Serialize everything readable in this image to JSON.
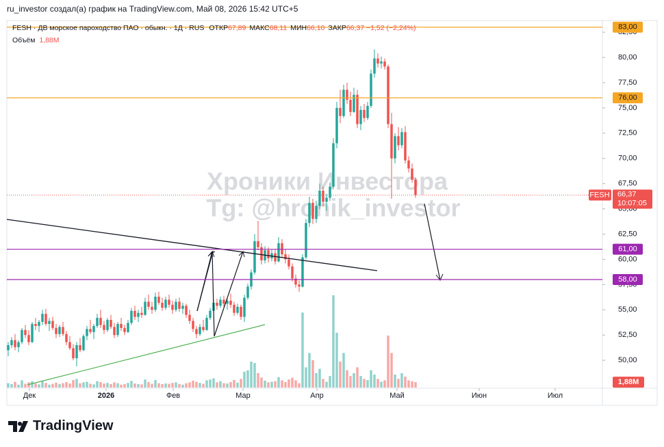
{
  "header": "ru_investor создал(а) график на TradingView.com, Май 08, 2026 15:42 UTC+5",
  "footer": "TradingView",
  "chart_data": {
    "type": "candlestick",
    "legend": {
      "symbol": "FESH · ДВ морское пароходство ПАО · обыкн. · 1Д · RUS",
      "items": [
        {
          "name": "ОТКР",
          "value": 67.89,
          "label": "67,89"
        },
        {
          "name": "МАКС",
          "value": 68.11,
          "label": "68,11"
        },
        {
          "name": "МИН",
          "value": 66.1,
          "label": "66,10"
        },
        {
          "name": "ЗАКР",
          "value": 66.37,
          "label": "66,37"
        }
      ],
      "change": {
        "value": -1.52,
        "label": "−1,52"
      },
      "change_pct": {
        "value": -2.24,
        "label": "(−2,24%)"
      }
    },
    "volume_legend": {
      "name": "Объём",
      "value": 1.88,
      "label": "1,88M"
    },
    "watermark": [
      "Хроники Инвестора",
      "Tg: @hronik_investor"
    ],
    "up_color": "#26a69a",
    "down_color": "#ef5350",
    "xlim": [
      -0.4,
      173.6
    ],
    "xticks": [
      {
        "value": 6.2,
        "label": "Дек"
      },
      {
        "value": 28.6,
        "label": "2026"
      },
      {
        "value": 48.2,
        "label": "Фев"
      },
      {
        "value": 68.6,
        "label": "Мар"
      },
      {
        "value": 90.2,
        "label": "Апр"
      },
      {
        "value": 113.6,
        "label": "Май"
      },
      {
        "value": 137.6,
        "label": "Июн"
      },
      {
        "value": 159.8,
        "label": "Июл"
      }
    ],
    "ylim": [
      47.3,
      83.66
    ],
    "yticks": [
      {
        "value": 50,
        "label": "50,00"
      },
      {
        "value": 52.5,
        "label": "52,50"
      },
      {
        "value": 55,
        "label": "55,00"
      },
      {
        "value": 57.5,
        "label": "57,50"
      },
      {
        "value": 60,
        "label": "60,00"
      },
      {
        "value": 62.5,
        "label": "62,50"
      },
      {
        "value": 65,
        "label": "65,00"
      },
      {
        "value": 67.5,
        "label": "67,50"
      },
      {
        "value": 70,
        "label": "70,00"
      },
      {
        "value": 72.5,
        "label": "72,50"
      },
      {
        "value": 75,
        "label": "75,00"
      },
      {
        "value": 77.5,
        "label": "77,50"
      },
      {
        "value": 80,
        "label": "80,00"
      },
      {
        "value": 82.5,
        "label": "82,50"
      }
    ],
    "levels": [
      {
        "value": 83,
        "label": "83,00",
        "color": "#f5a623"
      },
      {
        "value": 76,
        "label": "76,00",
        "color": "#f5a623"
      },
      {
        "value": 61,
        "label": "61,00",
        "color": "#9c27b0"
      },
      {
        "value": 58,
        "label": "58,00",
        "color": "#9c27b0"
      }
    ],
    "price_tag": {
      "symbol": "FESH",
      "value": 66.37,
      "label": "66,37",
      "countdown": "10:07:05"
    },
    "open": [
      51.0,
      51.5,
      52.0,
      51.3,
      51.8,
      53.0,
      52.5,
      51.8,
      53.6,
      53.4,
      53.8,
      54.6,
      53.6,
      53.9,
      53.2,
      52.6,
      53.3,
      52.6,
      51.8,
      51.2,
      50.2,
      51.5,
      51.0,
      52.4,
      53.1,
      52.8,
      53.4,
      54.2,
      53.5,
      53.0,
      54.0,
      53.3,
      52.5,
      53.6,
      53.2,
      52.8,
      53.7,
      54.9,
      54.3,
      54.7,
      54.5,
      55.8,
      55.3,
      55.0,
      56.3,
      55.7,
      55.2,
      56.0,
      55.5,
      55.0,
      55.8,
      55.1,
      55.4,
      54.5,
      53.9,
      53.1,
      52.6,
      53.3,
      53.0,
      54.2,
      54.9,
      55.7,
      55.4,
      56.0,
      55.6,
      55.9,
      55.5,
      54.7,
      55.3,
      54.3,
      56.2,
      57.3,
      58.7,
      61.8,
      61.2,
      59.9,
      60.9,
      60.1,
      60.6,
      59.8,
      61.6,
      60.5,
      60.0,
      59.3,
      58.1,
      57.5,
      57.3,
      60.2,
      63.6,
      65.6,
      64.0,
      65.3,
      66.8,
      65.7,
      66.1,
      67.2,
      71.5,
      75.0,
      74.2,
      76.8,
      75.8,
      74.6,
      76.3,
      73.4,
      74.8,
      74.0,
      75.2,
      78.4,
      79.9,
      79.4,
      79.6,
      79.1,
      73.4,
      70.0,
      72.2,
      71.3,
      72.6,
      69.8,
      69.0,
      67.89
    ],
    "high": [
      51.8,
      52.3,
      52.6,
      52.0,
      53.2,
      53.5,
      53.0,
      53.8,
      54.2,
      54.0,
      55.0,
      55.1,
      54.2,
      54.3,
      53.6,
      53.5,
      53.8,
      52.9,
      52.4,
      51.6,
      51.8,
      52.2,
      52.6,
      53.4,
      54.0,
      53.6,
      54.6,
      55.0,
      53.9,
      54.2,
      54.5,
      53.7,
      53.8,
      54.2,
      53.5,
      54.0,
      55.2,
      55.4,
      55.0,
      55.3,
      56.2,
      56.5,
      55.8,
      56.7,
      56.8,
      56.2,
      56.3,
      56.5,
      55.9,
      56.1,
      56.2,
      55.7,
      55.6,
      55.0,
      54.2,
      53.4,
      53.6,
      54.0,
      54.5,
      55.2,
      56.0,
      56.1,
      56.3,
      56.4,
      56.2,
      56.6,
      55.8,
      55.6,
      55.5,
      56.5,
      57.6,
      59.0,
      62.5,
      63.8,
      61.6,
      61.3,
      61.2,
      61.0,
      61.0,
      62.2,
      62.0,
      61.0,
      60.5,
      59.6,
      58.5,
      57.9,
      60.5,
      64.0,
      66.2,
      66.0,
      65.8,
      67.5,
      67.2,
      66.5,
      67.6,
      72.0,
      75.6,
      76.8,
      77.3,
      77.5,
      76.6,
      77.0,
      76.8,
      75.2,
      75.4,
      75.6,
      78.8,
      80.8,
      80.4,
      80.1,
      79.9,
      79.3,
      74.5,
      72.5,
      73.1,
      73.0,
      73.2,
      70.2,
      69.5,
      68.11
    ],
    "low": [
      50.4,
      51.2,
      51.0,
      50.8,
      51.6,
      52.2,
      51.5,
      51.7,
      53.0,
      52.8,
      53.5,
      53.4,
      52.9,
      53.0,
      52.2,
      52.3,
      52.4,
      51.5,
      51.0,
      50.0,
      49.4,
      50.8,
      50.9,
      52.0,
      52.6,
      52.1,
      53.2,
      53.2,
      52.6,
      52.8,
      53.1,
      52.2,
      52.3,
      52.9,
      52.5,
      52.7,
      53.5,
      54.0,
      53.8,
      54.2,
      54.4,
      55.0,
      54.6,
      54.8,
      55.5,
      54.9,
      55.0,
      55.2,
      54.6,
      54.8,
      54.8,
      54.6,
      54.2,
      53.6,
      52.8,
      52.2,
      52.4,
      52.8,
      52.9,
      54.0,
      54.6,
      55.0,
      55.2,
      55.3,
      55.0,
      55.2,
      54.4,
      54.5,
      54.0,
      53.8,
      56.0,
      57.0,
      58.5,
      60.9,
      59.5,
      59.6,
      59.7,
      59.8,
      59.5,
      59.7,
      60.2,
      59.6,
      59.0,
      57.8,
      57.2,
      56.8,
      57.2,
      60.0,
      63.2,
      63.5,
      63.6,
      65.0,
      65.2,
      64.8,
      65.8,
      67.0,
      71.0,
      73.5,
      74.0,
      75.4,
      74.2,
      74.5,
      73.0,
      72.8,
      73.6,
      73.8,
      75.0,
      78.0,
      79.0,
      78.9,
      78.8,
      73.0,
      66.0,
      69.5,
      70.8,
      71.0,
      69.5,
      68.6,
      67.6,
      66.1
    ],
    "close": [
      51.5,
      52.0,
      51.3,
      51.8,
      53.0,
      52.5,
      51.8,
      53.6,
      53.4,
      53.8,
      54.6,
      53.6,
      53.9,
      53.2,
      52.6,
      53.3,
      52.6,
      51.8,
      51.2,
      50.2,
      51.5,
      51.0,
      52.4,
      53.1,
      52.8,
      53.4,
      54.2,
      53.5,
      53.0,
      54.0,
      53.3,
      52.5,
      53.6,
      53.2,
      52.8,
      53.7,
      54.9,
      54.3,
      54.7,
      54.5,
      55.8,
      55.3,
      55.0,
      56.3,
      55.7,
      55.2,
      56.0,
      55.5,
      55.0,
      55.8,
      55.1,
      55.4,
      54.5,
      53.9,
      53.1,
      52.6,
      53.3,
      53.0,
      54.2,
      54.9,
      55.7,
      55.4,
      56.0,
      55.6,
      55.9,
      55.5,
      54.7,
      55.3,
      54.3,
      56.2,
      57.3,
      58.7,
      61.8,
      61.2,
      59.9,
      60.9,
      60.1,
      60.6,
      59.8,
      61.6,
      60.5,
      60.0,
      59.3,
      58.1,
      57.5,
      57.3,
      60.2,
      63.6,
      65.6,
      64.0,
      65.3,
      66.8,
      65.7,
      66.1,
      67.2,
      71.5,
      75.0,
      74.2,
      76.8,
      75.8,
      74.6,
      76.3,
      73.4,
      74.8,
      74.0,
      75.2,
      78.4,
      79.9,
      79.4,
      79.6,
      79.1,
      73.4,
      70.0,
      72.2,
      71.3,
      72.6,
      69.8,
      69.0,
      67.89,
      66.37
    ],
    "volume": [
      1.5,
      1.2,
      2.0,
      1.0,
      2.5,
      1.3,
      1.8,
      2.2,
      1.4,
      1.1,
      2.4,
      1.6,
      1.0,
      1.3,
      1.7,
      1.2,
      1.5,
      1.9,
      1.4,
      2.6,
      3.0,
      1.5,
      1.8,
      2.0,
      1.3,
      1.1,
      2.2,
      1.9,
      1.4,
      1.6,
      1.2,
      1.8,
      1.5,
      1.0,
      1.2,
      1.6,
      2.3,
      1.4,
      1.2,
      1.1,
      2.8,
      1.9,
      1.3,
      2.6,
      1.5,
      1.2,
      1.4,
      1.3,
      1.6,
      1.8,
      1.2,
      1.0,
      1.5,
      1.8,
      2.4,
      2.0,
      1.6,
      1.3,
      2.5,
      2.8,
      3.2,
      1.8,
      2.2,
      1.5,
      1.4,
      1.9,
      2.6,
      1.7,
      3.0,
      5.5,
      6.0,
      9.0,
      8.5,
      5.0,
      3.5,
      2.4,
      1.8,
      2.0,
      2.2,
      3.6,
      2.5,
      1.9,
      2.8,
      3.4,
      2.5,
      1.5,
      26.0,
      7.0,
      12.0,
      9.5,
      5.0,
      6.5,
      3.0,
      2.0,
      4.0,
      32.0,
      19.0,
      9.0,
      12.0,
      6.0,
      4.0,
      5.0,
      7.0,
      4.0,
      3.0,
      2.6,
      6.0,
      4.5,
      3.0,
      2.0,
      2.5,
      18.0,
      12.0,
      4.5,
      3.0,
      5.0,
      3.8,
      2.5,
      2.2,
      1.88
    ]
  }
}
